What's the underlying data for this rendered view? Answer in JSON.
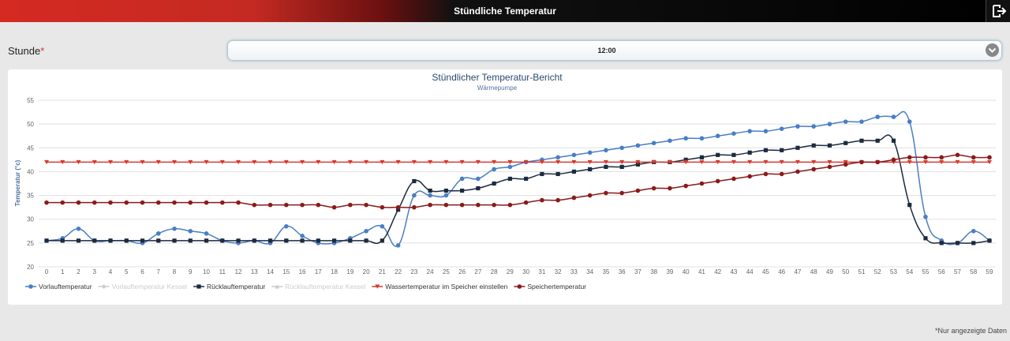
{
  "header": {
    "title": "Stündliche Temperatur"
  },
  "form": {
    "label": "Stunde",
    "required_mark": "*",
    "value": "12:00"
  },
  "footnote": "*Nur angezeigte Daten",
  "chart_data": {
    "type": "line",
    "title": "Stündlicher Temperatur-Bericht",
    "subtitle": "Wärmepumpe",
    "y_label": "Temperatur (°c)",
    "categories": [
      "0",
      "1",
      "2",
      "3",
      "4",
      "5",
      "6",
      "7",
      "8",
      "9",
      "10",
      "11",
      "12",
      "13",
      "14",
      "15",
      "16",
      "17",
      "18",
      "19",
      "20",
      "21",
      "22",
      "23",
      "24",
      "25",
      "26",
      "27",
      "28",
      "29",
      "30",
      "31",
      "32",
      "33",
      "34",
      "35",
      "36",
      "37",
      "38",
      "39",
      "40",
      "41",
      "42",
      "43",
      "44",
      "45",
      "46",
      "47",
      "48",
      "49",
      "50",
      "51",
      "52",
      "53",
      "54",
      "55",
      "56",
      "57",
      "58",
      "59"
    ],
    "ylim": [
      20,
      55
    ],
    "yticks": [
      20,
      25,
      30,
      35,
      40,
      45,
      50,
      55
    ],
    "grid": true,
    "series": [
      {
        "name": "Vorlauftemperatur",
        "color": "#4a7ec4",
        "marker": "circle",
        "values": [
          25.5,
          26,
          28,
          25.5,
          25.5,
          25.5,
          25,
          27,
          28,
          27.5,
          27,
          25.5,
          25,
          25.5,
          25,
          28.5,
          26.5,
          25,
          25,
          26,
          27.5,
          28.5,
          24.5,
          35,
          35,
          35,
          38.5,
          38.5,
          40.5,
          41,
          42,
          42.5,
          43,
          43.5,
          44,
          44.5,
          45,
          45.5,
          46,
          46.5,
          47,
          47,
          47.5,
          48,
          48.5,
          48.5,
          49,
          49.5,
          49.5,
          50,
          50.5,
          50.5,
          51.5,
          51.5,
          50.5,
          30.5,
          25.5,
          25,
          27.5,
          25.5
        ]
      },
      {
        "name": "Vorlauftemperatur Kessel",
        "color": "#cccccc",
        "marker": "diamond",
        "visible": false
      },
      {
        "name": "Rücklauftemperatur",
        "color": "#1c2b3f",
        "marker": "square",
        "values": [
          25.5,
          25.5,
          25.5,
          25.5,
          25.5,
          25.5,
          25.5,
          25.5,
          25.5,
          25.5,
          25.5,
          25.5,
          25.5,
          25.5,
          25.5,
          25.5,
          25.5,
          25.5,
          25.5,
          25.5,
          25.5,
          25.5,
          32,
          38,
          36,
          36,
          36,
          36.5,
          37.5,
          38.5,
          38.5,
          39.5,
          39.5,
          40,
          40.5,
          41,
          41,
          41.5,
          42,
          42,
          42.5,
          43,
          43.5,
          43.5,
          44,
          44.5,
          44.5,
          45,
          45.5,
          45.5,
          46,
          46.5,
          46.5,
          46.5,
          33,
          26,
          25,
          25,
          25,
          25.5
        ]
      },
      {
        "name": "Rücklauftemperatur Kessel",
        "color": "#cccccc",
        "marker": "triangle",
        "visible": false
      },
      {
        "name": "Wassertemperatur im Speicher einstellen",
        "color": "#d63a2f",
        "marker": "triangle-down",
        "values": [
          42,
          42,
          42,
          42,
          42,
          42,
          42,
          42,
          42,
          42,
          42,
          42,
          42,
          42,
          42,
          42,
          42,
          42,
          42,
          42,
          42,
          42,
          42,
          42,
          42,
          42,
          42,
          42,
          42,
          42,
          42,
          42,
          42,
          42,
          42,
          42,
          42,
          42,
          42,
          42,
          42,
          42,
          42,
          42,
          42,
          42,
          42,
          42,
          42,
          42,
          42,
          42,
          42,
          42,
          42,
          42,
          42,
          42,
          42,
          42
        ]
      },
      {
        "name": "Speichertemperatur",
        "color": "#8b1a1a",
        "marker": "circle",
        "values": [
          33.5,
          33.5,
          33.5,
          33.5,
          33.5,
          33.5,
          33.5,
          33.5,
          33.5,
          33.5,
          33.5,
          33.5,
          33.5,
          33,
          33,
          33,
          33,
          33,
          32.5,
          33,
          33,
          32.5,
          32.5,
          32.5,
          33,
          33,
          33,
          33,
          33,
          33,
          33.5,
          34,
          34,
          34.5,
          35,
          35.5,
          35.5,
          36,
          36.5,
          36.5,
          37,
          37.5,
          38,
          38.5,
          39,
          39.5,
          39.5,
          40,
          40.5,
          41,
          41.5,
          42,
          42,
          42.5,
          43,
          43,
          43,
          43.5,
          43,
          43
        ]
      }
    ]
  }
}
